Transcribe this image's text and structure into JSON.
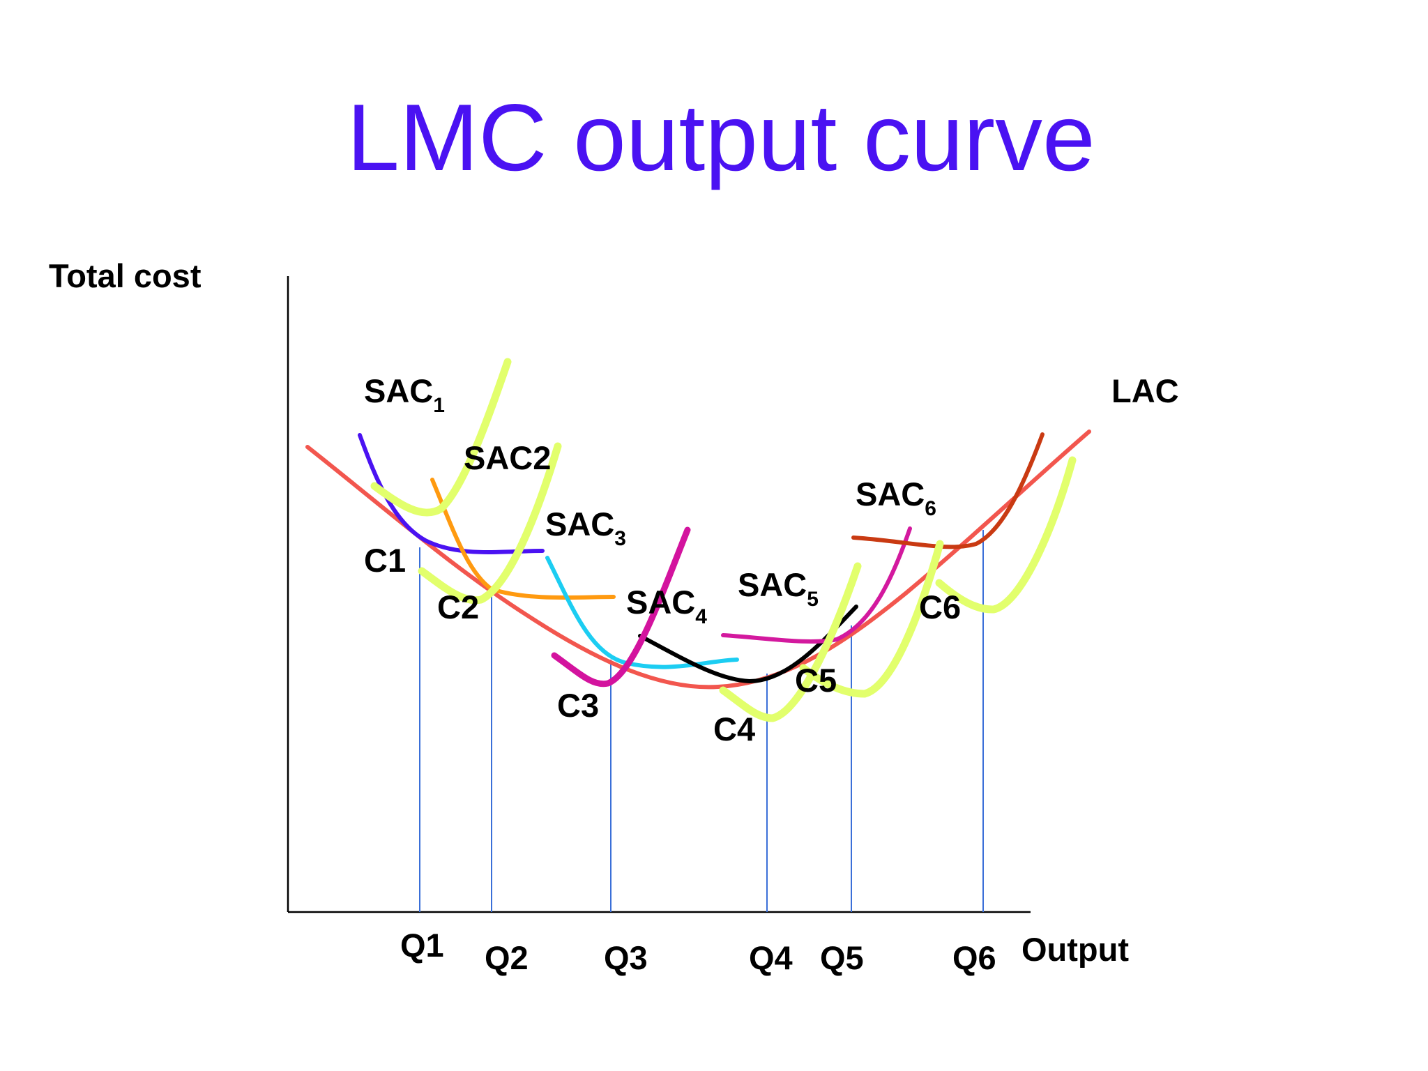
{
  "title": "LMC output curve",
  "axes": {
    "y_label": "Total cost",
    "x_label": "Output"
  },
  "quantities": [
    "Q1",
    "Q2",
    "Q3",
    "Q4",
    "Q5",
    "Q6"
  ],
  "cost_points": [
    "C1",
    "C2",
    "C3",
    "C4",
    "C5",
    "C6"
  ],
  "curves": {
    "sac1": {
      "base": "SAC",
      "sub": "1"
    },
    "sac2": {
      "base": "SAC2",
      "sub": ""
    },
    "sac3": {
      "base": "SAC",
      "sub": "3"
    },
    "sac4": {
      "base": "SAC",
      "sub": "4"
    },
    "sac5": {
      "base": "SAC",
      "sub": "5"
    },
    "sac6": {
      "base": "SAC",
      "sub": "6"
    },
    "lac": {
      "base": "LAC",
      "sub": ""
    }
  },
  "colors": {
    "title": "#4a12f2",
    "lac": "#f2564e",
    "sac1": "#4a12f2",
    "sac2": "#ff9a10",
    "sac3": "#1ccdf2",
    "sac4": "#000000",
    "sac5": "#d3199e",
    "sac6": "#c93a12",
    "lmc": "#e2ff6c",
    "smc3": "#d3139e",
    "dropline": "#3a6fd8"
  }
}
